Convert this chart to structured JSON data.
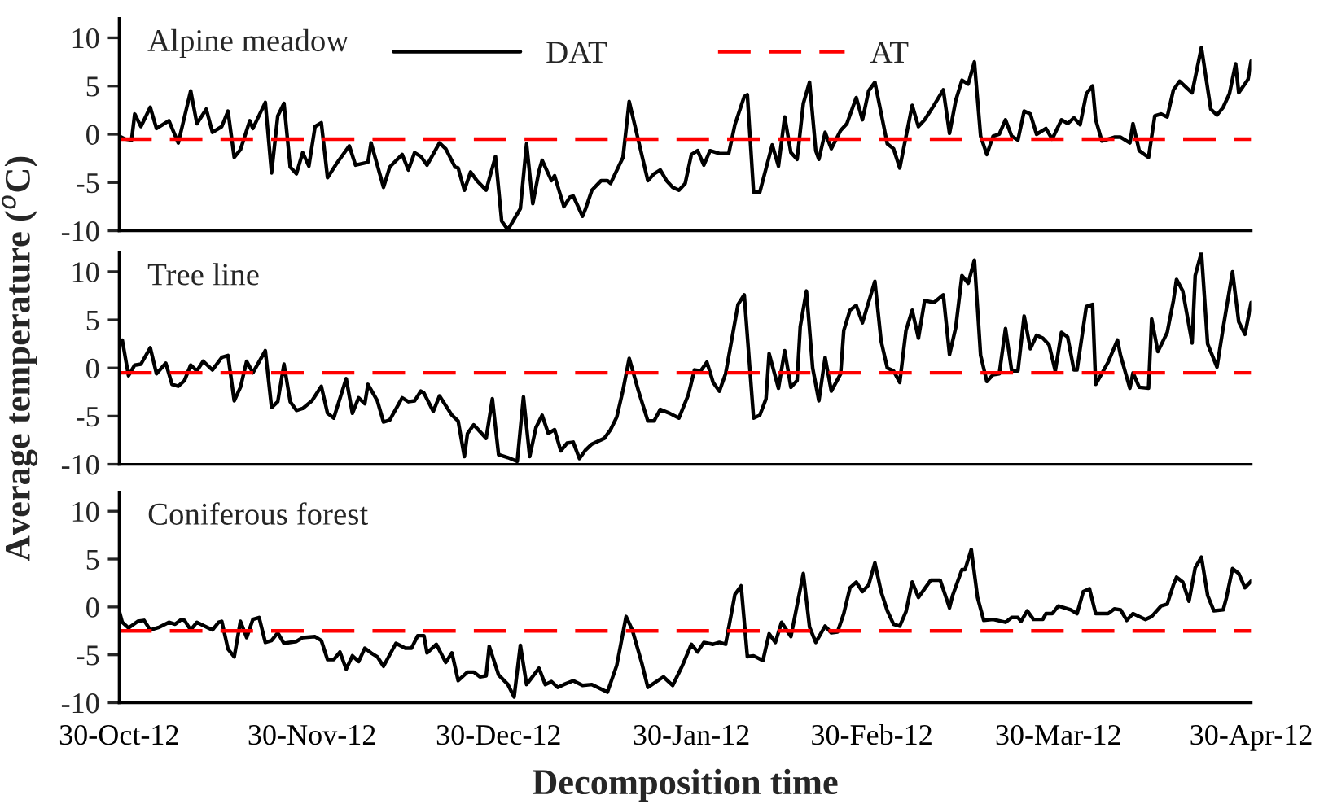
{
  "chart_data": [
    {
      "type": "line",
      "title": "Alpine meadow",
      "legend": "top",
      "tick_labels": "y",
      "xlim": [
        "2012-10-30",
        "2013-04-30"
      ],
      "ylim": [
        -10,
        12
      ],
      "yticks": [
        -10,
        -5,
        0,
        5,
        10
      ],
      "series": [
        {
          "name": "DAT",
          "color": "#000000",
          "line_style": "solid",
          "x": [
            "2012-10-30",
            "2012-10-31",
            "2012-11-01",
            "2012-11-01T12:00",
            "2012-11-02T12:00",
            "2012-11-04",
            "2012-11-05",
            "2012-11-07",
            "2012-11-08T12:00",
            "2012-11-10T12:00",
            "2012-11-11T12:00",
            "2012-11-13",
            "2012-11-14",
            "2012-11-15T12:00",
            "2012-11-16T12:00",
            "2012-11-17T12:00",
            "2012-11-18T12:00",
            "2012-11-20",
            "2012-11-20T12:00",
            "2012-11-22T12:00",
            "2012-11-23T12:00",
            "2012-11-24T12:00",
            "2012-11-25T12:00",
            "2012-11-26T12:00",
            "2012-11-27T12:00",
            "2012-11-28T12:00",
            "2012-11-29T12:00",
            "2012-11-30T12:00",
            "2012-12-01T12:00",
            "2012-12-02T12:00",
            "2012-12-04",
            "2012-12-06",
            "2012-12-07",
            "2012-12-09",
            "2012-12-09T12:00",
            "2012-12-11T12:00",
            "2012-12-12T12:00",
            "2012-12-14T12:00",
            "2012-12-15T12:00",
            "2012-12-16T12:00",
            "2012-12-17T12:00",
            "2012-12-18T12:00",
            "2012-12-20T12:00",
            "2012-12-21T12:00",
            "2012-12-23",
            "2012-12-23T12:00",
            "2012-12-24T12:00",
            "2012-12-25T12:00",
            "2012-12-26T12:00",
            "2012-12-28",
            "2012-12-29T12:00",
            "2012-12-30T12:00",
            "2012-12-31T12:00",
            "2013-01-02T12:00",
            "2013-01-03T12:00",
            "2013-01-04T12:00",
            "2013-01-05T12:00",
            "2013-01-06",
            "2013-01-07T12:00",
            "2013-01-08",
            "2013-01-09T12:00",
            "2013-01-10T12:00",
            "2013-01-11",
            "2013-01-12T12:00",
            "2013-01-13",
            "2013-01-14",
            "2013-01-15T12:00",
            "2013-01-16T12:00",
            "2013-01-17",
            "2013-01-19",
            "2013-01-20",
            "2013-01-21T12:00",
            "2013-01-23",
            "2013-01-24",
            "2013-01-25",
            "2013-01-26",
            "2013-01-27",
            "2013-01-28",
            "2013-01-29",
            "2013-01-30",
            "2013-01-31",
            "2013-02-01",
            "2013-02-02",
            "2013-02-03T12:00",
            "2013-02-05",
            "2013-02-06",
            "2013-02-07T12:00",
            "2013-02-08",
            "2013-02-09",
            "2013-02-10",
            "2013-02-12",
            "2013-02-13",
            "2013-02-14",
            "2013-02-15",
            "2013-02-16",
            "2013-02-17",
            "2013-02-18",
            "2013-02-19",
            "2013-02-19T12:00",
            "2013-02-20T12:00",
            "2013-02-21T12:00",
            "2013-02-23",
            "2013-02-24",
            "2013-02-25T12:00",
            "2013-02-26T12:00",
            "2013-02-27T12:00",
            "2013-02-28T12:00",
            "2013-03-02T12:00",
            "2013-03-03T12:00",
            "2013-03-04T12:00",
            "2013-03-06T12:00",
            "2013-03-07T12:00",
            "2013-03-08T12:00",
            "2013-03-10",
            "2013-03-11T12:00",
            "2013-03-12T12:00",
            "2013-03-13T12:00",
            "2013-03-14T12:00",
            "2013-03-15T12:00",
            "2013-03-16T12:00",
            "2013-03-17T12:00",
            "2013-03-18T12:00",
            "2013-03-19T12:00",
            "2013-03-20T12:00",
            "2013-03-21T12:00",
            "2013-03-22T12:00",
            "2013-03-23T12:00",
            "2013-03-24T12:00",
            "2013-03-25T12:00",
            "2013-03-26T12:00",
            "2013-03-28",
            "2013-03-29",
            "2013-03-30T12:00",
            "2013-03-31T12:00",
            "2013-04-01T12:00",
            "2013-04-02T12:00",
            "2013-04-03T12:00",
            "2013-04-04T12:00",
            "2013-04-05",
            "2013-04-06",
            "2013-04-08",
            "2013-04-09",
            "2013-04-10T12:00",
            "2013-04-11",
            "2013-04-12",
            "2013-04-13T12:00",
            "2013-04-14T12:00",
            "2013-04-15T12:00",
            "2013-04-16T12:00",
            "2013-04-17T12:00",
            "2013-04-18T12:00",
            "2013-04-20T12:00",
            "2013-04-22",
            "2013-04-23T12:00",
            "2013-04-24T12:00",
            "2013-04-25T12:00",
            "2013-04-26T12:00",
            "2013-04-27T12:00",
            "2013-04-28",
            "2013-04-29T12:00",
            "2013-04-30"
          ],
          "values": [
            -0.2,
            -0.5,
            -0.6,
            2.1,
            0.8,
            2.8,
            0.6,
            1.4,
            -0.9,
            4.5,
            1.1,
            2.6,
            0.2,
            0.8,
            2.4,
            -2.4,
            -1.6,
            1.4,
            0.6,
            3.3,
            -4.0,
            1.9,
            3.2,
            -3.4,
            -4.1,
            -1.9,
            -3.3,
            0.8,
            1.2,
            -4.5,
            -3.0,
            -1.2,
            -3.2,
            -2.9,
            -0.9,
            -5.5,
            -3.4,
            -2.1,
            -3.7,
            -1.9,
            -2.3,
            -3.2,
            -0.9,
            -1.5,
            -3.4,
            -3.5,
            -5.8,
            -3.9,
            -4.8,
            -5.8,
            -2.3,
            -9.0,
            -9.9,
            -7.7,
            -1.0,
            -7.2,
            -3.8,
            -2.7,
            -4.8,
            -4.3,
            -7.5,
            -6.5,
            -6.4,
            -8.5,
            -7.7,
            -5.8,
            -4.8,
            -4.8,
            -5.1,
            -2.4,
            3.4,
            -0.7,
            -4.8,
            -4.1,
            -3.7,
            -4.8,
            -5.5,
            -5.8,
            -5.1,
            -2.1,
            -1.7,
            -3.2,
            -1.7,
            -2.0,
            -2.0,
            1.0,
            3.9,
            4.1,
            -6.0,
            -6.0,
            -1.1,
            -3.3,
            1.8,
            -1.9,
            -2.6,
            3.2,
            5.4,
            -1.7,
            -2.6,
            0.2,
            -1.5,
            0.4,
            1.1,
            3.8,
            1.5,
            4.5,
            5.4,
            -1.0,
            -1.5,
            -3.5,
            3.0,
            0.8,
            1.5,
            3.0,
            4.6,
            0.1,
            3.5,
            5.6,
            5.2,
            7.5,
            -0.2,
            -2.1,
            -0.2,
            0,
            1.5,
            -0.2,
            -0.6,
            2.4,
            2.1,
            0,
            0.6,
            -0.5,
            1.5,
            1.1,
            1.7,
            1.0,
            4.2,
            5.0,
            1.5,
            -0.7,
            -0.3,
            -0.3,
            -0.9,
            1.1,
            -1.7,
            -2.4,
            1.9,
            2.1,
            1.8,
            4.6,
            5.5,
            4.3,
            9.0,
            2.6,
            2.0,
            2.8,
            4.2,
            7.3,
            4.3,
            5.7,
            7.6
          ]
        },
        {
          "name": "AT",
          "color": "#ff0000",
          "line_style": "dashed",
          "x": [
            "2012-10-30",
            "2013-04-30"
          ],
          "values": [
            -0.5,
            -0.5
          ]
        }
      ]
    },
    {
      "type": "line",
      "title": "Tree line",
      "ylabel": "Average temperature ($^{o}$C)",
      "tick_labels": "y",
      "xlim": [
        "2012-10-30",
        "2013-04-30"
      ],
      "ylim": [
        -10,
        12
      ],
      "yticks": [
        -10,
        -5,
        0,
        5,
        10
      ],
      "xticks": [
        {
          "value": "2012-10-30",
          "label": null
        },
        {
          "value": "2012-11-30",
          "label": null
        },
        {
          "value": "2012-12-30",
          "label": null
        },
        {
          "value": "2013-01-30",
          "label": null
        },
        {
          "value": "2013-02-28",
          "label": null
        },
        {
          "value": "2013-03-30",
          "label": null
        },
        {
          "value": "2013-04-30",
          "label": null
        }
      ],
      "series": [
        {
          "color": "#000000",
          "line_style": "solid",
          "x": [
            "2012-10-30T12:00",
            "2012-10-31T12:00",
            "2012-11-01T12:00",
            "2012-11-02T12:00",
            "2012-11-04",
            "2012-11-05",
            "2012-11-06T12:00",
            "2012-11-07T12:00",
            "2012-11-08T12:00",
            "2012-11-09T12:00",
            "2012-11-10T12:00",
            "2012-11-11T12:00",
            "2012-11-12T12:00",
            "2012-11-14",
            "2012-11-15T12:00",
            "2012-11-16T12:00",
            "2012-11-17T12:00",
            "2012-11-18T12:00",
            "2012-11-19T12:00",
            "2012-11-20T12:00",
            "2012-11-22T12:00",
            "2012-11-23T12:00",
            "2012-11-24T12:00",
            "2012-11-25T12:00",
            "2012-11-26T12:00",
            "2012-11-27T12:00",
            "2012-11-28T12:00",
            "2012-11-30",
            "2012-12-01T12:00",
            "2012-12-02T12:00",
            "2012-12-03T12:00",
            "2012-12-05T12:00",
            "2012-12-06T12:00",
            "2012-12-07T12:00",
            "2012-12-08T12:00",
            "2012-12-09",
            "2012-12-10T12:00",
            "2012-12-11T12:00",
            "2012-12-12T12:00",
            "2012-12-14T12:00",
            "2012-12-15T12:00",
            "2012-12-16T12:00",
            "2012-12-17T12:00",
            "2012-12-18",
            "2012-12-19T12:00",
            "2012-12-20T12:00",
            "2012-12-22T12:00",
            "2012-12-23T12:00",
            "2012-12-24T12:00",
            "2012-12-25",
            "2012-12-26",
            "2012-12-28",
            "2012-12-29",
            "2012-12-30",
            "2012-12-31T12:00",
            "2013-01-02",
            "2013-01-03",
            "2013-01-04",
            "2013-01-05",
            "2013-01-06",
            "2013-01-07",
            "2013-01-08",
            "2013-01-09",
            "2013-01-10",
            "2013-01-11",
            "2013-01-12",
            "2013-01-13",
            "2013-01-14",
            "2013-01-16",
            "2013-01-17",
            "2013-01-18",
            "2013-01-19",
            "2013-01-20",
            "2013-01-21T12:00",
            "2013-01-23",
            "2013-01-24",
            "2013-01-25",
            "2013-01-26T12:00",
            "2013-01-28",
            "2013-01-29T12:00",
            "2013-01-30T12:00",
            "2013-01-31T12:00",
            "2013-02-01T12:00",
            "2013-02-02T12:00",
            "2013-02-03T12:00",
            "2013-02-04T12:00",
            "2013-02-06T12:00",
            "2013-02-07T12:00",
            "2013-02-09",
            "2013-02-10",
            "2013-02-11",
            "2013-02-11T12:00",
            "2013-02-13",
            "2013-02-14",
            "2013-02-15",
            "2013-02-16",
            "2013-02-16T12:00",
            "2013-02-17T12:00",
            "2013-02-18T12:00",
            "2013-02-19T12:00",
            "2013-02-20T12:00",
            "2013-02-21T12:00",
            "2013-02-23",
            "2013-02-23T12:00",
            "2013-02-24T12:00",
            "2013-02-25T12:00",
            "2013-02-26T12:00",
            "2013-02-28T12:00",
            "2013-03-01T12:00",
            "2013-03-02T12:00",
            "2013-03-03T12:00",
            "2013-03-04T12:00",
            "2013-03-05T12:00",
            "2013-03-06T12:00",
            "2013-03-07T12:00",
            "2013-03-08T12:00",
            "2013-03-10",
            "2013-03-11T12:00",
            "2013-03-12T12:00",
            "2013-03-13T12:00",
            "2013-03-14T12:00",
            "2013-03-15T12:00",
            "2013-03-16T12:00",
            "2013-03-17T12:00",
            "2013-03-18T12:00",
            "2013-03-19T12:00",
            "2013-03-20T12:00",
            "2013-03-21T12:00",
            "2013-03-22T12:00",
            "2013-03-23T12:00",
            "2013-03-24T12:00",
            "2013-03-25T12:00",
            "2013-03-26T12:00",
            "2013-03-27T12:00",
            "2013-03-28T12:00",
            "2013-03-29T12:00",
            "2013-03-30T12:00",
            "2013-03-31T12:00",
            "2013-04-01T12:00",
            "2013-04-02",
            "2013-04-03T12:00",
            "2013-04-04T12:00",
            "2013-04-05",
            "2013-04-07",
            "2013-04-08T12:00",
            "2013-04-09",
            "2013-04-10T12:00",
            "2013-04-11",
            "2013-04-12",
            "2013-04-13T12:00",
            "2013-04-14",
            "2013-04-15",
            "2013-04-16T12:00",
            "2013-04-17T12:00",
            "2013-04-18",
            "2013-04-19",
            "2013-04-20T12:00",
            "2013-04-21",
            "2013-04-22",
            "2013-04-23",
            "2013-04-24T12:00",
            "2013-04-25T12:00",
            "2013-04-27",
            "2013-04-28",
            "2013-04-29",
            "2013-04-30"
          ],
          "values": [
            2.9,
            -0.8,
            0.3,
            0.4,
            2.1,
            -0.6,
            0.5,
            -1.7,
            -1.9,
            -1.3,
            0.3,
            -0.3,
            0.7,
            -0.2,
            1.1,
            1.3,
            -3.4,
            -2.0,
            0.7,
            -0.5,
            1.8,
            -4.1,
            -3.5,
            0.4,
            -3.5,
            -4.4,
            -4.2,
            -3.4,
            -1.9,
            -4.7,
            -5.2,
            -1.1,
            -4.7,
            -3.1,
            -3.7,
            -1.7,
            -3.4,
            -5.6,
            -5.4,
            -3.1,
            -3.5,
            -3.4,
            -2.4,
            -2.6,
            -4.5,
            -2.9,
            -4.9,
            -5.5,
            -9.2,
            -6.8,
            -5.9,
            -7.3,
            -3.2,
            -9.0,
            -9.3,
            -9.7,
            -3.0,
            -9.2,
            -6.2,
            -4.9,
            -6.8,
            -6.4,
            -8.6,
            -7.8,
            -7.7,
            -9.4,
            -8.5,
            -7.9,
            -7.3,
            -6.4,
            -5.1,
            -2.3,
            1.0,
            -2.4,
            -5.5,
            -5.5,
            -4.3,
            -4.7,
            -5.2,
            -2.8,
            -0.2,
            -0.3,
            0.6,
            -1.5,
            -2.4,
            -0.6,
            6.6,
            7.6,
            -5.2,
            -4.9,
            -3.2,
            1.5,
            -2.1,
            1.8,
            -2.0,
            -1.3,
            4.3,
            8.0,
            0,
            -3.4,
            1.1,
            -2.4,
            -0.6,
            3.9,
            6.0,
            6.5,
            4.7,
            9.0,
            2.8,
            0,
            -0.3,
            -1.5,
            3.9,
            6.0,
            3.1,
            7.0,
            6.8,
            7.6,
            1.4,
            4.2,
            9.6,
            8.8,
            11.2,
            1.3,
            -1.4,
            -0.7,
            -0.6,
            4.1,
            -0.3,
            -0.3,
            5.4,
            2.0,
            3.4,
            3.1,
            2.4,
            -0.3,
            3.7,
            3.2,
            -0.2,
            -0.2,
            6.4,
            6.6,
            -1.7,
            0.6,
            2.9,
            1.3,
            -2.1,
            -0.5,
            -2.0,
            -2.1,
            5.1,
            1.7,
            3.7,
            7.0,
            9.2,
            8.0,
            2.6,
            9.6,
            12.0,
            2.5,
            0.1,
            4.2,
            10.0,
            4.8,
            3.5,
            6.8
          ]
        },
        {
          "color": "#ff0000",
          "line_style": "dashed",
          "x": [
            "2012-10-30",
            "2013-04-30"
          ],
          "values": [
            -0.5,
            -0.5
          ]
        }
      ]
    },
    {
      "type": "line",
      "title": "Coniferous forest",
      "xlabel": "Decomposition time",
      "xlim": [
        "2012-10-30",
        "2013-04-30"
      ],
      "ylim": [
        -10,
        12
      ],
      "yticks": [
        -10,
        -5,
        0,
        5,
        10
      ],
      "xticks": [
        {
          "value": "2012-10-30",
          "label": "30-Oct-12"
        },
        {
          "value": "2012-11-30",
          "label": "30-Nov-12"
        },
        {
          "value": "2012-12-30",
          "label": "30-Dec-12"
        },
        {
          "value": "2013-01-30",
          "label": "30-Jan-12"
        },
        {
          "value": "2013-02-28",
          "label": "30-Feb-12"
        },
        {
          "value": "2013-03-30",
          "label": "30-Mar-12"
        },
        {
          "value": "2013-04-30",
          "label": "30-Apr-12"
        }
      ],
      "series": [
        {
          "color": "#000000",
          "line_style": "solid",
          "x": [
            "2012-10-30",
            "2012-10-30T12:00",
            "2012-10-31T12:00",
            "2012-11-02",
            "2012-11-03",
            "2012-11-04",
            "2012-11-05T12:00",
            "2012-11-07",
            "2012-11-08",
            "2012-11-09",
            "2012-11-09T12:00",
            "2012-11-10T12:00",
            "2012-11-11T12:00",
            "2012-11-14",
            "2012-11-15",
            "2012-11-15T12:00",
            "2012-11-16T12:00",
            "2012-11-17T12:00",
            "2012-11-18T12:00",
            "2012-11-19T12:00",
            "2012-11-20T12:00",
            "2012-11-21T12:00",
            "2012-11-22T12:00",
            "2012-11-23T12:00",
            "2012-11-24T12:00",
            "2012-11-25T12:00",
            "2012-11-27T12:00",
            "2012-11-28T12:00",
            "2012-11-30T12:00",
            "2012-12-01T12:00",
            "2012-12-02T12:00",
            "2012-12-03T12:00",
            "2012-12-04T12:00",
            "2012-12-05T12:00",
            "2012-12-06T12:00",
            "2012-12-07T12:00",
            "2012-12-08T12:00",
            "2012-12-09T12:00",
            "2012-12-10T12:00",
            "2012-12-11T12:00",
            "2012-12-13T12:00",
            "2012-12-15",
            "2012-12-16",
            "2012-12-17",
            "2012-12-18",
            "2012-12-18T12:00",
            "2012-12-20",
            "2012-12-21T12:00",
            "2012-12-22T12:00",
            "2012-12-23T12:00",
            "2012-12-25",
            "2012-12-26",
            "2012-12-27",
            "2012-12-28",
            "2012-12-28T12:00",
            "2012-12-30",
            "2012-12-31T12:00",
            "2013-01-01T12:00",
            "2013-01-02T12:00",
            "2013-01-03T12:00",
            "2013-01-05T12:00",
            "2013-01-06T12:00",
            "2013-01-07T12:00",
            "2013-01-08T12:00",
            "2013-01-09T12:00",
            "2013-01-11",
            "2013-01-12T12:00",
            "2013-01-14",
            "2013-01-16T12:00",
            "2013-01-18",
            "2013-01-19T12:00",
            "2013-01-20T12:00",
            "2013-01-22",
            "2013-01-23",
            "2013-01-25T12:00",
            "2013-01-27",
            "2013-01-28T12:00",
            "2013-01-30",
            "2013-01-31",
            "2013-02-01",
            "2013-02-02T12:00",
            "2013-02-03T12:00",
            "2013-02-04T12:00",
            "2013-02-06",
            "2013-02-07",
            "2013-02-08",
            "2013-02-09",
            "2013-02-10T12:00",
            "2013-02-11T12:00",
            "2013-02-12T12:00",
            "2013-02-13T12:00",
            "2013-02-15",
            "2013-02-17",
            "2013-02-18",
            "2013-02-19",
            "2013-02-20T12:00",
            "2013-02-21T12:00",
            "2013-02-22T12:00",
            "2013-02-23T12:00",
            "2013-02-24T12:00",
            "2013-02-25T12:00",
            "2013-02-26T12:00",
            "2013-02-27T12:00",
            "2013-02-28T12:00",
            "2013-03-01T12:00",
            "2013-03-02T12:00",
            "2013-03-03T12:00",
            "2013-03-04T12:00",
            "2013-03-05T12:00",
            "2013-03-06T12:00",
            "2013-03-07T12:00",
            "2013-03-09T12:00",
            "2013-03-11",
            "2013-03-12T12:00",
            "2013-03-13",
            "2013-03-14T12:00",
            "2013-03-15",
            "2013-03-16",
            "2013-03-17",
            "2013-03-18",
            "2013-03-19T12:00",
            "2013-03-21T12:00",
            "2013-03-22T12:00",
            "2013-03-23T12:00",
            "2013-03-24",
            "2013-03-25",
            "2013-03-26",
            "2013-03-27T12:00",
            "2013-03-28",
            "2013-03-29",
            "2013-03-30",
            "2013-04-01",
            "2013-04-02",
            "2013-04-03",
            "2013-04-04",
            "2013-04-05",
            "2013-04-07",
            "2013-04-08",
            "2013-04-09",
            "2013-04-10",
            "2013-04-11",
            "2013-04-13",
            "2013-04-14",
            "2013-04-15T12:00",
            "2013-04-16T12:00",
            "2013-04-17T12:00",
            "2013-04-18",
            "2013-04-19",
            "2013-04-20",
            "2013-04-21",
            "2013-04-22",
            "2013-04-23",
            "2013-04-24",
            "2013-04-25T12:00",
            "2013-04-26",
            "2013-04-27",
            "2013-04-28",
            "2013-04-29",
            "2013-04-30"
          ],
          "values": [
            -0.4,
            -1.6,
            -2.2,
            -1.5,
            -1.4,
            -2.4,
            -2.1,
            -1.6,
            -1.8,
            -1.3,
            -1.4,
            -2.4,
            -1.6,
            -2.4,
            -1.6,
            -1.5,
            -4.4,
            -5.2,
            -1.5,
            -3.2,
            -1.3,
            -1.1,
            -3.7,
            -3.5,
            -2.7,
            -3.8,
            -3.6,
            -3.2,
            -3.1,
            -3.5,
            -5.5,
            -5.5,
            -4.7,
            -6.5,
            -5.1,
            -5.7,
            -4.3,
            -4.8,
            -5.2,
            -6.2,
            -3.8,
            -4.3,
            -4.3,
            -3.0,
            -3.0,
            -4.8,
            -3.9,
            -5.8,
            -4.8,
            -7.7,
            -6.8,
            -6.8,
            -7.3,
            -7.2,
            -4.1,
            -7.1,
            -8.1,
            -9.4,
            -4.0,
            -8.1,
            -6.4,
            -8.1,
            -7.8,
            -8.4,
            -8.1,
            -7.7,
            -8.2,
            -8.1,
            -8.9,
            -6.1,
            -1.0,
            -2.4,
            -5.8,
            -8.4,
            -7.3,
            -8.2,
            -6.2,
            -3.9,
            -4.7,
            -3.7,
            -3.9,
            -3.7,
            -3.9,
            1.3,
            2.2,
            -5.2,
            -5.1,
            -5.6,
            -2.8,
            -3.7,
            -1.6,
            -3.1,
            3.5,
            -2.1,
            -3.7,
            -2.0,
            -2.7,
            -2.6,
            -0.7,
            2.0,
            2.6,
            1.6,
            2.3,
            4.6,
            1.6,
            -0.4,
            -1.8,
            -2.0,
            -0.5,
            2.6,
            1.0,
            2.8,
            2.8,
            -0.1,
            1.2,
            3.9,
            3.9,
            6.0,
            1.0,
            -1.4,
            -1.3,
            -1.6,
            -1.1,
            -1.1,
            -1.5,
            -0.4,
            -1.3,
            -1.3,
            -0.7,
            -0.7,
            0.1,
            -0.3,
            -0.7,
            1.6,
            1.9,
            -0.7,
            -0.7,
            -0.2,
            -0.3,
            -1.4,
            -0.7,
            -1.3,
            -1.0,
            0.1,
            0.3,
            2.3,
            3.1,
            2.6,
            0.6,
            4.1,
            5.2,
            1.2,
            -0.4,
            -0.3,
            0.9,
            4.0,
            3.5,
            2.0,
            2.7
          ]
        },
        {
          "color": "#ff0000",
          "line_style": "dashed",
          "x": [
            "2012-10-30",
            "2013-04-30"
          ],
          "values": [
            -2.5,
            -2.5
          ]
        }
      ]
    }
  ]
}
